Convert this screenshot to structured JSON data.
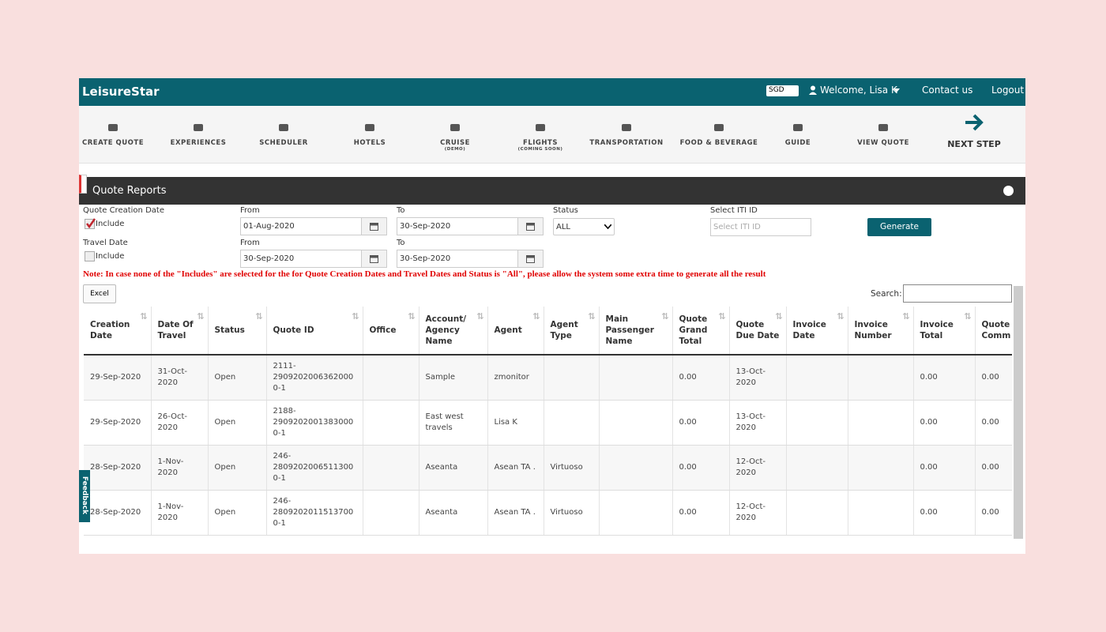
{
  "header": {
    "brand": "LeisureStar",
    "currency": "SGD",
    "welcome": "Welcome, Lisa K",
    "contact": "Contact us",
    "logout": "Logout"
  },
  "nav": [
    {
      "label": "CREATE QUOTE"
    },
    {
      "label": "EXPERIENCES"
    },
    {
      "label": "SCHEDULER"
    },
    {
      "label": "HOTELS"
    },
    {
      "label": "CRUISE",
      "note": "(DEMO)"
    },
    {
      "label": "FLIGHTS",
      "note": "(COMING SOON)"
    },
    {
      "label": "TRANSPORTATION"
    },
    {
      "label": "FOOD & BEVERAGE"
    },
    {
      "label": "GUIDE"
    },
    {
      "label": "VIEW QUOTE"
    }
  ],
  "next_step": "NEXT STEP",
  "panel": {
    "title": "Quote Reports"
  },
  "filters": {
    "creation_label": "Quote Creation Date",
    "creation_include": "Include",
    "travel_label": "Travel Date",
    "travel_include": "Include",
    "from1": "From",
    "from1_value": "01-Aug-2020",
    "to1": "To",
    "to1_value": "30-Sep-2020",
    "from2": "From",
    "from2_value": "30-Sep-2020",
    "to2": "To",
    "to2_value": "30-Sep-2020",
    "status_label": "Status",
    "status_value": "ALL",
    "iti_label": "Select ITI ID",
    "iti_placeholder": "Select ITI ID",
    "generate": "Generate"
  },
  "note": "Note: In case none of the \"Includes\" are selected for the for Quote Creation Dates and Travel Dates and Status is \"All\", please allow the system some extra time to generate all the result",
  "excel": "Excel",
  "search_label": "Search:",
  "table": {
    "columns": [
      "Creation Date",
      "Date Of Travel",
      "Status",
      "Quote ID",
      "Office",
      "Account/ Agency Name",
      "Agent",
      "Agent Type",
      "Main Passenger Name",
      "Quote Grand Total",
      "Quote Due Date",
      "Invoice Date",
      "Invoice Number",
      "Invoice Total",
      "Quote Comm"
    ],
    "rows": [
      [
        "29-Sep-2020",
        "31-Oct-2020",
        "Open",
        "2111-29092020063620000-1",
        null,
        "Sample",
        "zmonitor",
        null,
        null,
        "0.00",
        "13-Oct-2020",
        null,
        null,
        "0.00",
        "0.00"
      ],
      [
        "29-Sep-2020",
        "26-Oct-2020",
        "Open",
        "2188-29092020013830000-1",
        null,
        "East west travels",
        "Lisa K",
        null,
        null,
        "0.00",
        "13-Oct-2020",
        null,
        null,
        "0.00",
        "0.00"
      ],
      [
        "28-Sep-2020",
        "1-Nov-2020",
        "Open",
        "246-28092020065113000-1",
        null,
        "Aseanta",
        "Asean TA .",
        "Virtuoso",
        null,
        "0.00",
        "12-Oct-2020",
        null,
        null,
        "0.00",
        "0.00"
      ],
      [
        "28-Sep-2020",
        "1-Nov-2020",
        "Open",
        "246-28092020115137000-1",
        null,
        "Aseanta",
        "Asean TA .",
        "Virtuoso",
        null,
        "0.00",
        "12-Oct-2020",
        null,
        null,
        "0.00",
        "0.00"
      ]
    ]
  },
  "feedback": "Feedback"
}
